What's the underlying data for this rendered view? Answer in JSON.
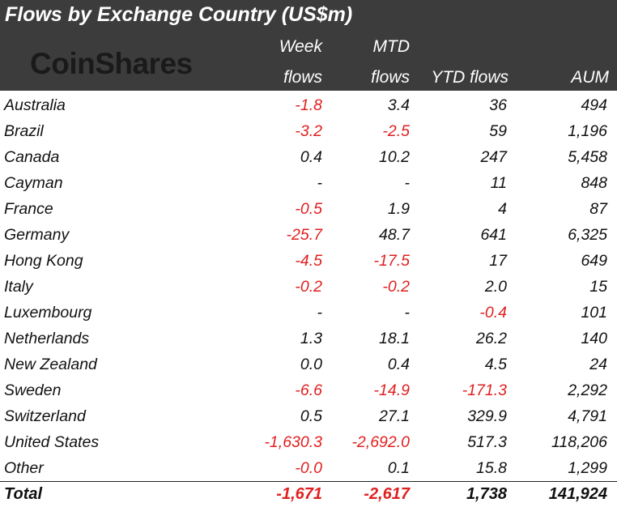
{
  "chart_data": {
    "type": "table",
    "title": "Flows by Exchange Country (US$m)",
    "brand": "CoinShares",
    "columns": [
      "",
      "Week flows",
      "MTD flows",
      "YTD flows",
      "AUM"
    ],
    "header": {
      "week_top": "Week",
      "week_bottom": "flows",
      "mtd_top": "MTD",
      "mtd_bottom": "flows",
      "ytd": "YTD flows",
      "aum": "AUM"
    },
    "rows": [
      {
        "country": "Australia",
        "week": "-1.8",
        "mtd": "3.4",
        "ytd": "36",
        "aum": "494"
      },
      {
        "country": "Brazil",
        "week": "-3.2",
        "mtd": "-2.5",
        "ytd": "59",
        "aum": "1,196"
      },
      {
        "country": "Canada",
        "week": "0.4",
        "mtd": "10.2",
        "ytd": "247",
        "aum": "5,458"
      },
      {
        "country": "Cayman",
        "week": "-",
        "mtd": "-",
        "ytd": "11",
        "aum": "848"
      },
      {
        "country": "France",
        "week": "-0.5",
        "mtd": "1.9",
        "ytd": "4",
        "aum": "87"
      },
      {
        "country": "Germany",
        "week": "-25.7",
        "mtd": "48.7",
        "ytd": "641",
        "aum": "6,325"
      },
      {
        "country": "Hong Kong",
        "week": "-4.5",
        "mtd": "-17.5",
        "ytd": "17",
        "aum": "649"
      },
      {
        "country": "Italy",
        "week": "-0.2",
        "mtd": "-0.2",
        "ytd": "2.0",
        "aum": "15"
      },
      {
        "country": "Luxembourg",
        "week": "-",
        "mtd": "-",
        "ytd": "-0.4",
        "aum": "101"
      },
      {
        "country": "Netherlands",
        "week": "1.3",
        "mtd": "18.1",
        "ytd": "26.2",
        "aum": "140"
      },
      {
        "country": "New Zealand",
        "week": "0.0",
        "mtd": "0.4",
        "ytd": "4.5",
        "aum": "24"
      },
      {
        "country": "Sweden",
        "week": "-6.6",
        "mtd": "-14.9",
        "ytd": "-171.3",
        "aum": "2,292"
      },
      {
        "country": "Switzerland",
        "week": "0.5",
        "mtd": "27.1",
        "ytd": "329.9",
        "aum": "4,791"
      },
      {
        "country": "United States",
        "week": "-1,630.3",
        "mtd": "-2,692.0",
        "ytd": "517.3",
        "aum": "118,206"
      },
      {
        "country": "Other",
        "week": "-0.0",
        "mtd": "0.1",
        "ytd": "15.8",
        "aum": "1,299"
      }
    ],
    "total": {
      "country": "Total",
      "week": "-1,671",
      "mtd": "-2,617",
      "ytd": "1,738",
      "aum": "141,924"
    }
  },
  "colors": {
    "header_bg": "#3c3c3c",
    "negative": "#e02020",
    "text": "#111111"
  }
}
